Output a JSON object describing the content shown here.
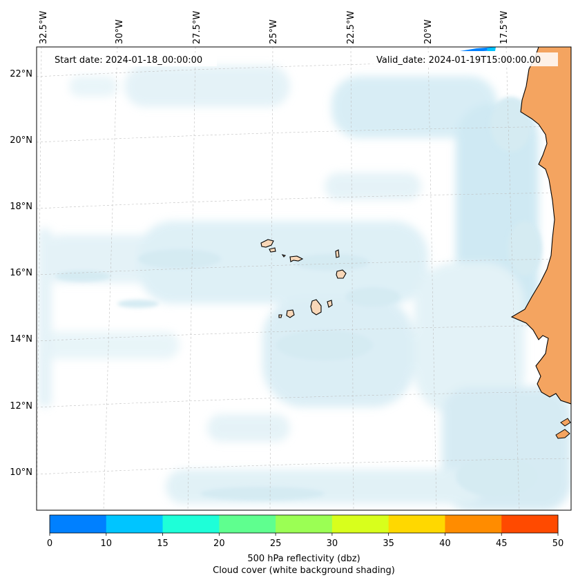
{
  "map": {
    "start_date_label": "Start date: 2024-01-18_00:00:00",
    "valid_date_label": "Valid_date: 2024-01-19T15:00:00.00",
    "lon_labels": [
      "32.5°W",
      "30°W",
      "27.5°W",
      "25°W",
      "22.5°W",
      "20°W",
      "17.5°W"
    ],
    "lat_labels": [
      "22°N",
      "20°N",
      "18°N",
      "16°N",
      "14°N",
      "12°N",
      "10°N"
    ],
    "land_color": "#f4a460",
    "cloud_color": "#add8e6",
    "coast_color": "#000000"
  },
  "colorbar": {
    "ticks": [
      "0",
      "10",
      "15",
      "20",
      "25",
      "30",
      "35",
      "40",
      "45",
      "50"
    ],
    "colors": [
      "#0080ff",
      "#00c5ff",
      "#1effd8",
      "#5fff8f",
      "#9bff54",
      "#d8ff1c",
      "#ffd800",
      "#ff8c00",
      "#ff4a00"
    ],
    "label_line1": "500 hPa reflectivity (dbz)",
    "label_line2": "Cloud cover (white background shading)"
  }
}
